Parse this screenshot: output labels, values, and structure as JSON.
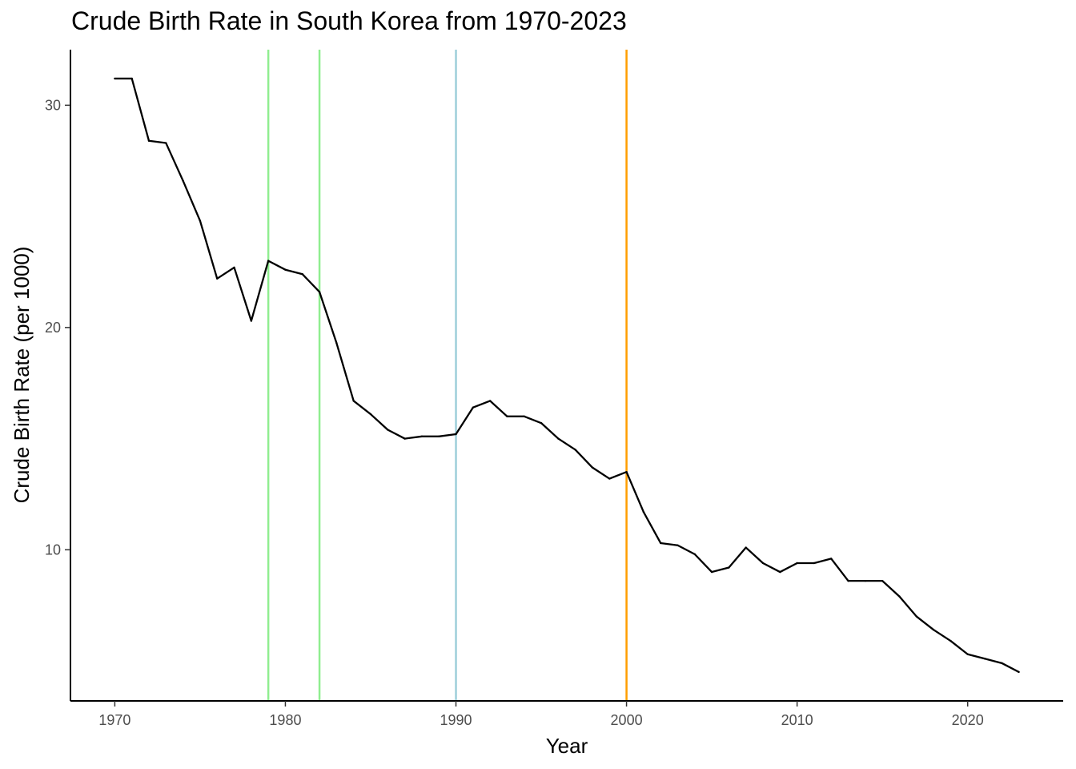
{
  "chart_data": {
    "type": "line",
    "title": "Crude Birth Rate in South Korea from 1970-2023",
    "xlabel": "Year",
    "ylabel": "Crude Birth Rate (per 1000)",
    "xlim": [
      1967.4,
      2025.6
    ],
    "ylim": [
      3.2,
      32.5
    ],
    "x_ticks": [
      1970,
      1980,
      1990,
      2000,
      2010,
      2020
    ],
    "y_ticks": [
      10,
      20,
      30
    ],
    "grid": false,
    "line_color": "#000000",
    "series": [
      {
        "x": [
          1970,
          1971,
          1972,
          1973,
          1974,
          1975,
          1976,
          1977,
          1978,
          1979,
          1980,
          1981,
          1982,
          1983,
          1984,
          1985,
          1986,
          1987,
          1988,
          1989,
          1990,
          1991,
          1992,
          1993,
          1994,
          1995,
          1996,
          1997,
          1998,
          1999,
          2000,
          2001,
          2002,
          2003,
          2004,
          2005,
          2006,
          2007,
          2008,
          2009,
          2010,
          2011,
          2012,
          2013,
          2014,
          2015,
          2016,
          2017,
          2018,
          2019,
          2020,
          2021,
          2022,
          2023
        ],
        "y": [
          31.2,
          31.2,
          28.4,
          28.3,
          26.6,
          24.8,
          22.2,
          22.7,
          20.3,
          23.0,
          22.6,
          22.4,
          21.6,
          19.3,
          16.7,
          16.1,
          15.4,
          15.0,
          15.1,
          15.1,
          15.2,
          16.4,
          16.7,
          16.0,
          16.0,
          15.7,
          15.0,
          14.5,
          13.7,
          13.2,
          13.5,
          11.7,
          10.3,
          10.2,
          9.8,
          9.0,
          9.2,
          10.1,
          9.4,
          9.0,
          9.4,
          9.4,
          9.6,
          8.6,
          8.6,
          8.6,
          7.9,
          7.0,
          6.4,
          5.9,
          5.3,
          5.1,
          4.9,
          4.5
        ]
      }
    ],
    "vertical_lines": [
      {
        "x": 1979,
        "color": "#90ee90"
      },
      {
        "x": 1982,
        "color": "#90ee90"
      },
      {
        "x": 1990,
        "color": "#9ecfda"
      },
      {
        "x": 2000,
        "color": "#ff9e00"
      }
    ]
  }
}
